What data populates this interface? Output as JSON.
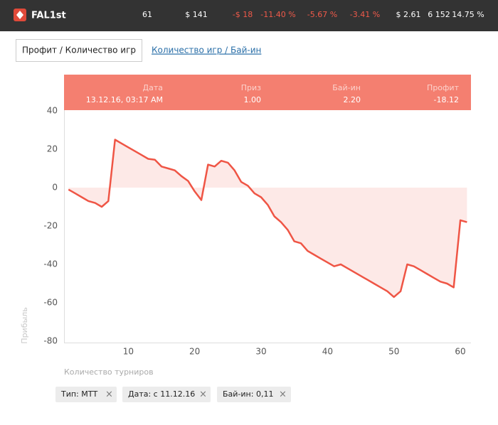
{
  "header": {
    "name": "FAL1st",
    "stats": [
      {
        "text": "61",
        "color": "#ffffff"
      },
      {
        "text": "$ 141",
        "color": "#ffffff"
      },
      {
        "text": "-$ 18",
        "color": "#f05a4a"
      },
      {
        "text": "-11.40 %",
        "color": "#f05a4a"
      },
      {
        "text": "-5.67 %",
        "color": "#f05a4a"
      },
      {
        "text": "-3.41 %",
        "color": "#f05a4a"
      },
      {
        "text": "$ 2.61",
        "color": "#ffffff"
      },
      {
        "text": "6 152",
        "color": "#ffffff"
      },
      {
        "text": "14.75 %",
        "color": "#ffffff"
      }
    ]
  },
  "tabs": [
    "Профит / Количество игр",
    "Количество игр / Бай-ин"
  ],
  "tooltip": {
    "labels": [
      "Дата",
      "Приз",
      "Бай-ин",
      "Профит"
    ],
    "values": [
      "13.12.16, 03:17 AM",
      "1.00",
      "2.20",
      "-18.12"
    ]
  },
  "chart_data": {
    "type": "line",
    "ylabel": "Прибыль",
    "xlabel": "Количество турниров",
    "x": [
      1,
      2,
      3,
      4,
      5,
      6,
      7,
      8,
      9,
      10,
      11,
      12,
      13,
      14,
      15,
      16,
      17,
      18,
      19,
      20,
      21,
      22,
      23,
      24,
      25,
      26,
      27,
      28,
      29,
      30,
      31,
      32,
      33,
      34,
      35,
      36,
      37,
      38,
      39,
      40,
      41,
      42,
      43,
      44,
      45,
      46,
      47,
      48,
      49,
      50,
      51,
      52,
      53,
      54,
      55,
      56,
      57,
      58,
      59,
      60,
      61
    ],
    "series": [
      {
        "name": "Профит",
        "color": "#ef5545",
        "fill": "#fde9e7",
        "values": [
          -1,
          -3,
          -5,
          -7,
          -8,
          -10,
          -7,
          25,
          23,
          21,
          19,
          17,
          15,
          14.5,
          11,
          10,
          9,
          6,
          3.5,
          -2,
          -6.5,
          12,
          11,
          14,
          13,
          9,
          3,
          1,
          -3,
          -5,
          -9,
          -15,
          -18,
          -22,
          -28,
          -29,
          -33,
          -35,
          -37,
          -39,
          -41,
          -40,
          -42,
          -44,
          -46,
          -48,
          -50,
          -52,
          -54,
          -57,
          -54,
          -40,
          -41,
          -43,
          -45,
          -47,
          -49,
          -50,
          -52,
          -17,
          -18
        ]
      }
    ],
    "xlim": [
      0,
      61.6
    ],
    "ylim": [
      -80,
      40
    ],
    "xticks": [
      10,
      20,
      30,
      40,
      50,
      60
    ],
    "yticks": [
      40,
      20,
      0,
      -20,
      -40,
      -60,
      -80
    ]
  },
  "filters": [
    "Тип: МТТ",
    "Дата: с 11.12.16",
    "Бай-ин: 0,11"
  ]
}
